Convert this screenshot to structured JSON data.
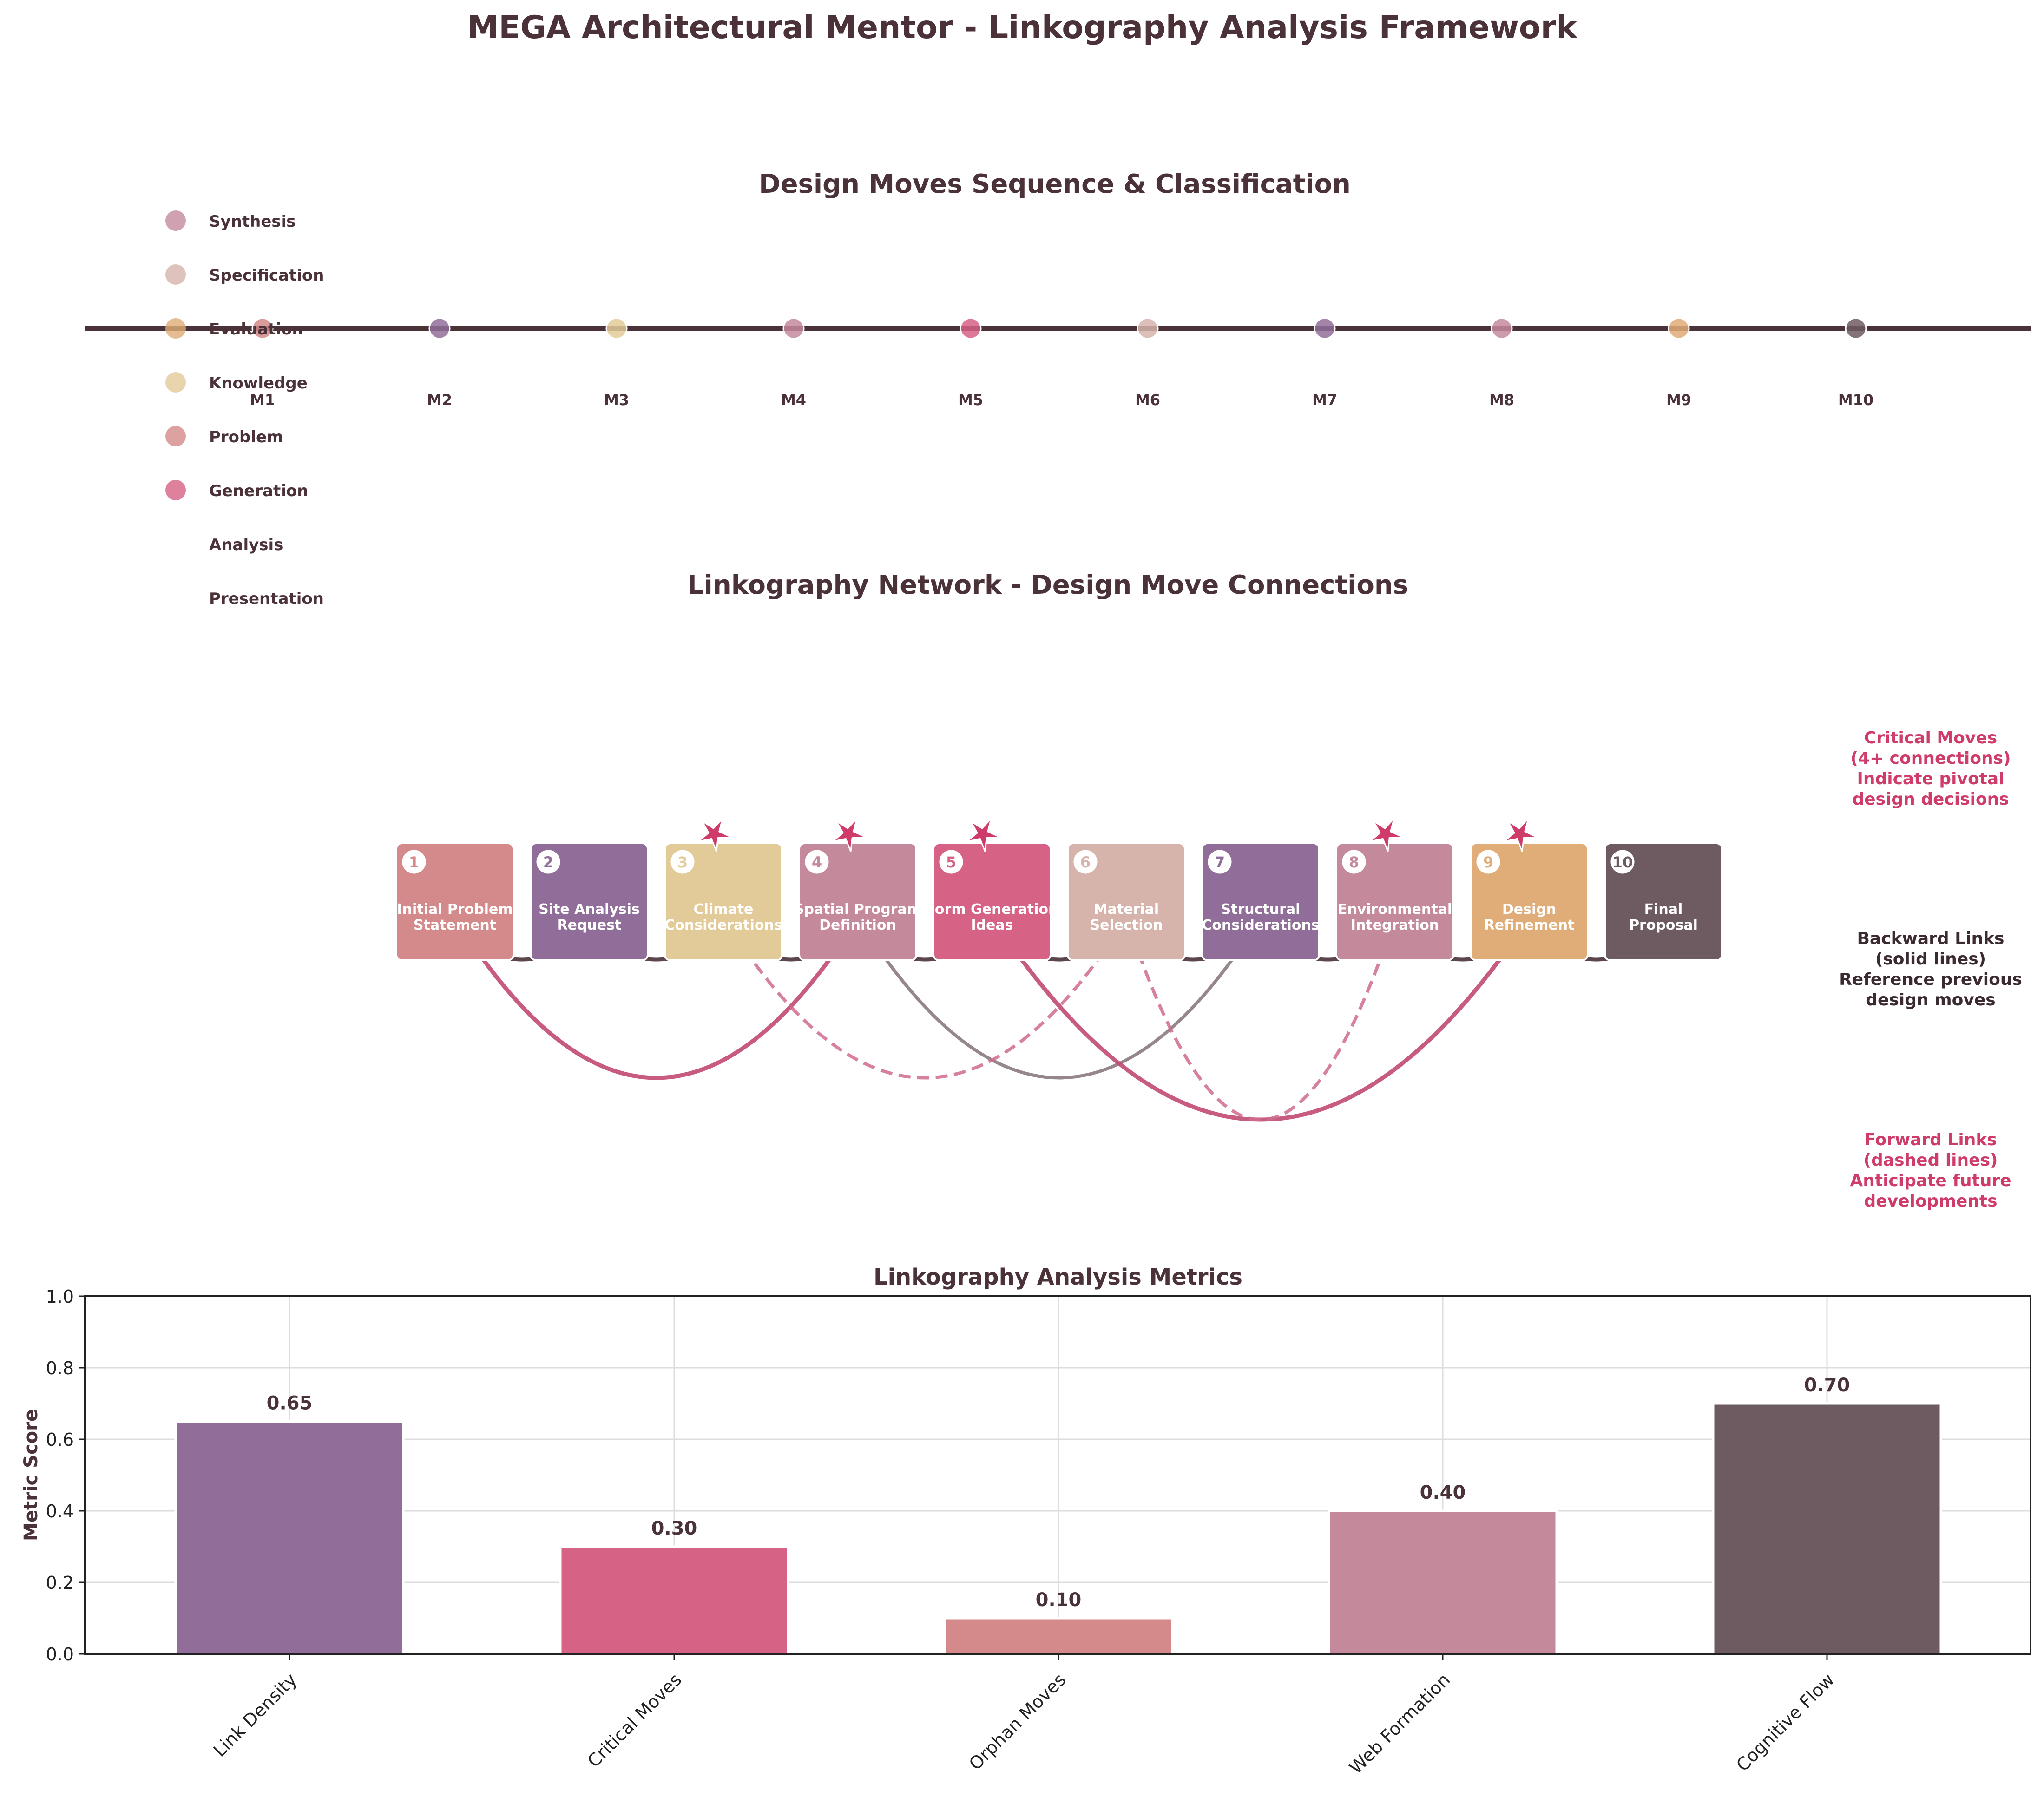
{
  "page_title": "MEGA Architectural Mentor - Linkography Analysis Framework",
  "colors": {
    "synthesis": "#c48a9c",
    "specification": "#d6b4ab",
    "evaluation": "#e0ac78",
    "knowledge": "#e2cb98",
    "problem": "#d4898a",
    "generation": "#d66285",
    "analysis": "#906e99",
    "presentation": "#6e5b61",
    "dark": "#4a3238",
    "accent": "#cf3c6a"
  },
  "sequence_panel": {
    "title": "Design Moves Sequence & Classification",
    "legend": [
      {
        "label": "Synthesis",
        "category": "synthesis",
        "marker": true
      },
      {
        "label": "Specification",
        "category": "specification",
        "marker": true
      },
      {
        "label": "Evaluation",
        "category": "evaluation",
        "marker": true
      },
      {
        "label": "Knowledge",
        "category": "knowledge",
        "marker": true
      },
      {
        "label": "Problem",
        "category": "problem",
        "marker": true
      },
      {
        "label": "Generation",
        "category": "generation",
        "marker": true
      },
      {
        "label": "Analysis",
        "category": "analysis",
        "marker": false
      },
      {
        "label": "Presentation",
        "category": "presentation",
        "marker": false
      }
    ],
    "moves": [
      {
        "label": "M1",
        "category": "problem"
      },
      {
        "label": "M2",
        "category": "analysis"
      },
      {
        "label": "M3",
        "category": "knowledge"
      },
      {
        "label": "M4",
        "category": "synthesis"
      },
      {
        "label": "M5",
        "category": "generation"
      },
      {
        "label": "M6",
        "category": "specification"
      },
      {
        "label": "M7",
        "category": "analysis"
      },
      {
        "label": "M8",
        "category": "synthesis"
      },
      {
        "label": "M9",
        "category": "evaluation"
      },
      {
        "label": "M10",
        "category": "presentation"
      }
    ]
  },
  "network_panel": {
    "title": "Linkography Network - Design Move Connections",
    "moves": [
      {
        "number": "1",
        "line1": "Initial Problem",
        "line2": "Statement",
        "category": "problem",
        "critical": false
      },
      {
        "number": "2",
        "line1": "Site Analysis",
        "line2": "Request",
        "category": "analysis",
        "critical": false
      },
      {
        "number": "3",
        "line1": "Climate",
        "line2": "Considerations",
        "category": "knowledge",
        "critical": true
      },
      {
        "number": "4",
        "line1": "Spatial Program",
        "line2": "Definition",
        "category": "synthesis",
        "critical": true
      },
      {
        "number": "5",
        "line1": "Form Generation",
        "line2": "Ideas",
        "category": "generation",
        "critical": true
      },
      {
        "number": "6",
        "line1": "Material",
        "line2": "Selection",
        "category": "specification",
        "critical": false
      },
      {
        "number": "7",
        "line1": "Structural",
        "line2": "Considerations",
        "category": "analysis",
        "critical": false
      },
      {
        "number": "8",
        "line1": "Environmental",
        "line2": "Integration",
        "category": "synthesis",
        "critical": true
      },
      {
        "number": "9",
        "line1": "Design",
        "line2": "Refinement",
        "category": "evaluation",
        "critical": true
      },
      {
        "number": "10",
        "line1": "Final",
        "line2": "Proposal",
        "category": "presentation",
        "critical": false
      }
    ],
    "links": [
      {
        "from": 1,
        "to": 2,
        "kind": "backward"
      },
      {
        "from": 2,
        "to": 3,
        "kind": "backward"
      },
      {
        "from": 3,
        "to": 4,
        "kind": "backward"
      },
      {
        "from": 4,
        "to": 5,
        "kind": "backward"
      },
      {
        "from": 5,
        "to": 6,
        "kind": "backward"
      },
      {
        "from": 6,
        "to": 7,
        "kind": "backward"
      },
      {
        "from": 7,
        "to": 8,
        "kind": "backward"
      },
      {
        "from": 8,
        "to": 9,
        "kind": "backward"
      },
      {
        "from": 9,
        "to": 10,
        "kind": "backward"
      },
      {
        "from": 1,
        "to": 4,
        "kind": "critical"
      },
      {
        "from": 4,
        "to": 7,
        "kind": "backward-long"
      },
      {
        "from": 5,
        "to": 9,
        "kind": "critical"
      },
      {
        "from": 3,
        "to": 6,
        "kind": "forward"
      },
      {
        "from": 6,
        "to": 8,
        "kind": "forward"
      }
    ],
    "notes": {
      "critical": [
        "Critical Moves",
        "(4+ connections)",
        "Indicate pivotal",
        "design decisions"
      ],
      "backward": [
        "Backward Links",
        "(solid lines)",
        "Reference previous",
        "design moves"
      ],
      "forward": [
        "Forward Links",
        "(dashed lines)",
        "Anticipate future",
        "developments"
      ]
    }
  },
  "chart_data": {
    "type": "bar",
    "title": "Linkography Analysis Metrics",
    "xlabel": "",
    "ylabel": "Metric Score",
    "categories": [
      "Link Density",
      "Critical Moves",
      "Orphan Moves",
      "Web Formation",
      "Cognitive Flow"
    ],
    "values": [
      0.65,
      0.3,
      0.1,
      0.4,
      0.7
    ],
    "value_labels": [
      "0.65",
      "0.30",
      "0.10",
      "0.40",
      "0.70"
    ],
    "bar_colors": [
      "#906e99",
      "#d66285",
      "#d4898a",
      "#c48a9c",
      "#6e5b61"
    ],
    "ylim": [
      0,
      1.0
    ],
    "yticks": [
      "0.0",
      "0.2",
      "0.4",
      "0.6",
      "0.8",
      "1.0"
    ],
    "grid": true
  }
}
